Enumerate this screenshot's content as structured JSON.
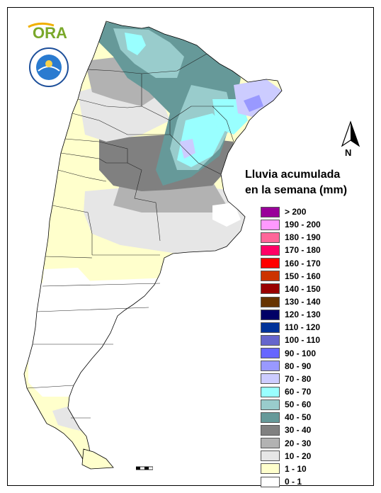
{
  "map": {
    "legend_title_line1": "Lluvia acumulada",
    "legend_title_line2": "en la semana (mm)",
    "north_label": "N",
    "logo_text": "ORA",
    "legend": [
      {
        "label": "> 200",
        "color": "#990099"
      },
      {
        "label": "190 - 200",
        "color": "#ff99ff"
      },
      {
        "label": "180 - 190",
        "color": "#ff6699"
      },
      {
        "label": "170 - 180",
        "color": "#ff0066"
      },
      {
        "label": "160 - 170",
        "color": "#ff0000"
      },
      {
        "label": "150 - 160",
        "color": "#cc3300"
      },
      {
        "label": "140 - 150",
        "color": "#990000"
      },
      {
        "label": "130 - 140",
        "color": "#663300"
      },
      {
        "label": "120 - 130",
        "color": "#000066"
      },
      {
        "label": "110 - 120",
        "color": "#003399"
      },
      {
        "label": "100 - 110",
        "color": "#6666cc"
      },
      {
        "label": "90 - 100",
        "color": "#6666ff"
      },
      {
        "label": "80 - 90",
        "color": "#9999ff"
      },
      {
        "label": "70 - 80",
        "color": "#ccccff"
      },
      {
        "label": "60 - 70",
        "color": "#99ffff"
      },
      {
        "label": "50 - 60",
        "color": "#99cccc"
      },
      {
        "label": "40 - 50",
        "color": "#669999"
      },
      {
        "label": "30 - 40",
        "color": "#808080"
      },
      {
        "label": "20 - 30",
        "color": "#b2b2b2"
      },
      {
        "label": "10 - 20",
        "color": "#e6e6e6"
      },
      {
        "label": "1 - 10",
        "color": "#ffffcc"
      },
      {
        "label": "0 - 1",
        "color": "#ffffff"
      }
    ]
  }
}
